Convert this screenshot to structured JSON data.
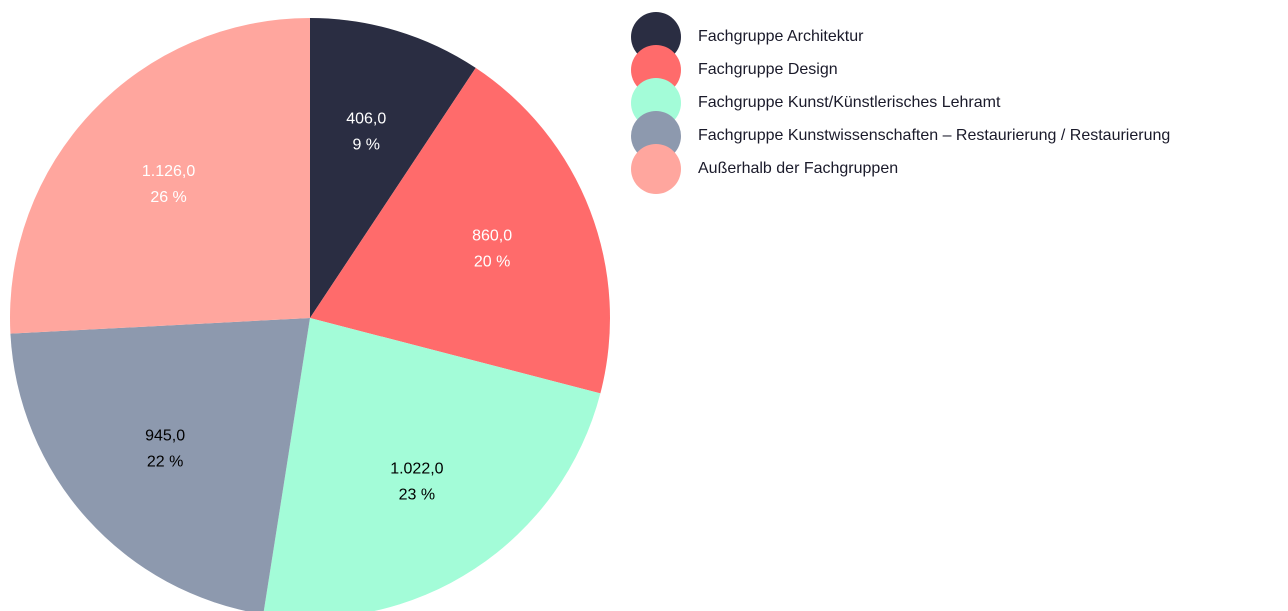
{
  "chart_data": {
    "type": "pie",
    "categories": [
      "Fachgruppe Architektur",
      "Fachgruppe Design",
      "Fachgruppe Kunst/Künstlerisches Lehramt",
      "Fachgruppe Kunstwissenschaften – Restaurierung / Restaurierung",
      "Außerhalb der Fachgruppen"
    ],
    "values": [
      406,
      860,
      1022,
      945,
      1126
    ],
    "value_labels": [
      "406,0",
      "860,0",
      "1.022,0",
      "945,0",
      "1.126,0"
    ],
    "percent_labels": [
      "9 %",
      "20 %",
      "23 %",
      "22 %",
      "26 %"
    ],
    "colors": [
      "#2a2d42",
      "#ff6b6b",
      "#a3fcd8",
      "#8d99ae",
      "#ffa69e"
    ],
    "label_colors": [
      "#ffffff",
      "#ffffff",
      "#000000",
      "#000000",
      "#ffffff"
    ],
    "legend": "top-right"
  }
}
